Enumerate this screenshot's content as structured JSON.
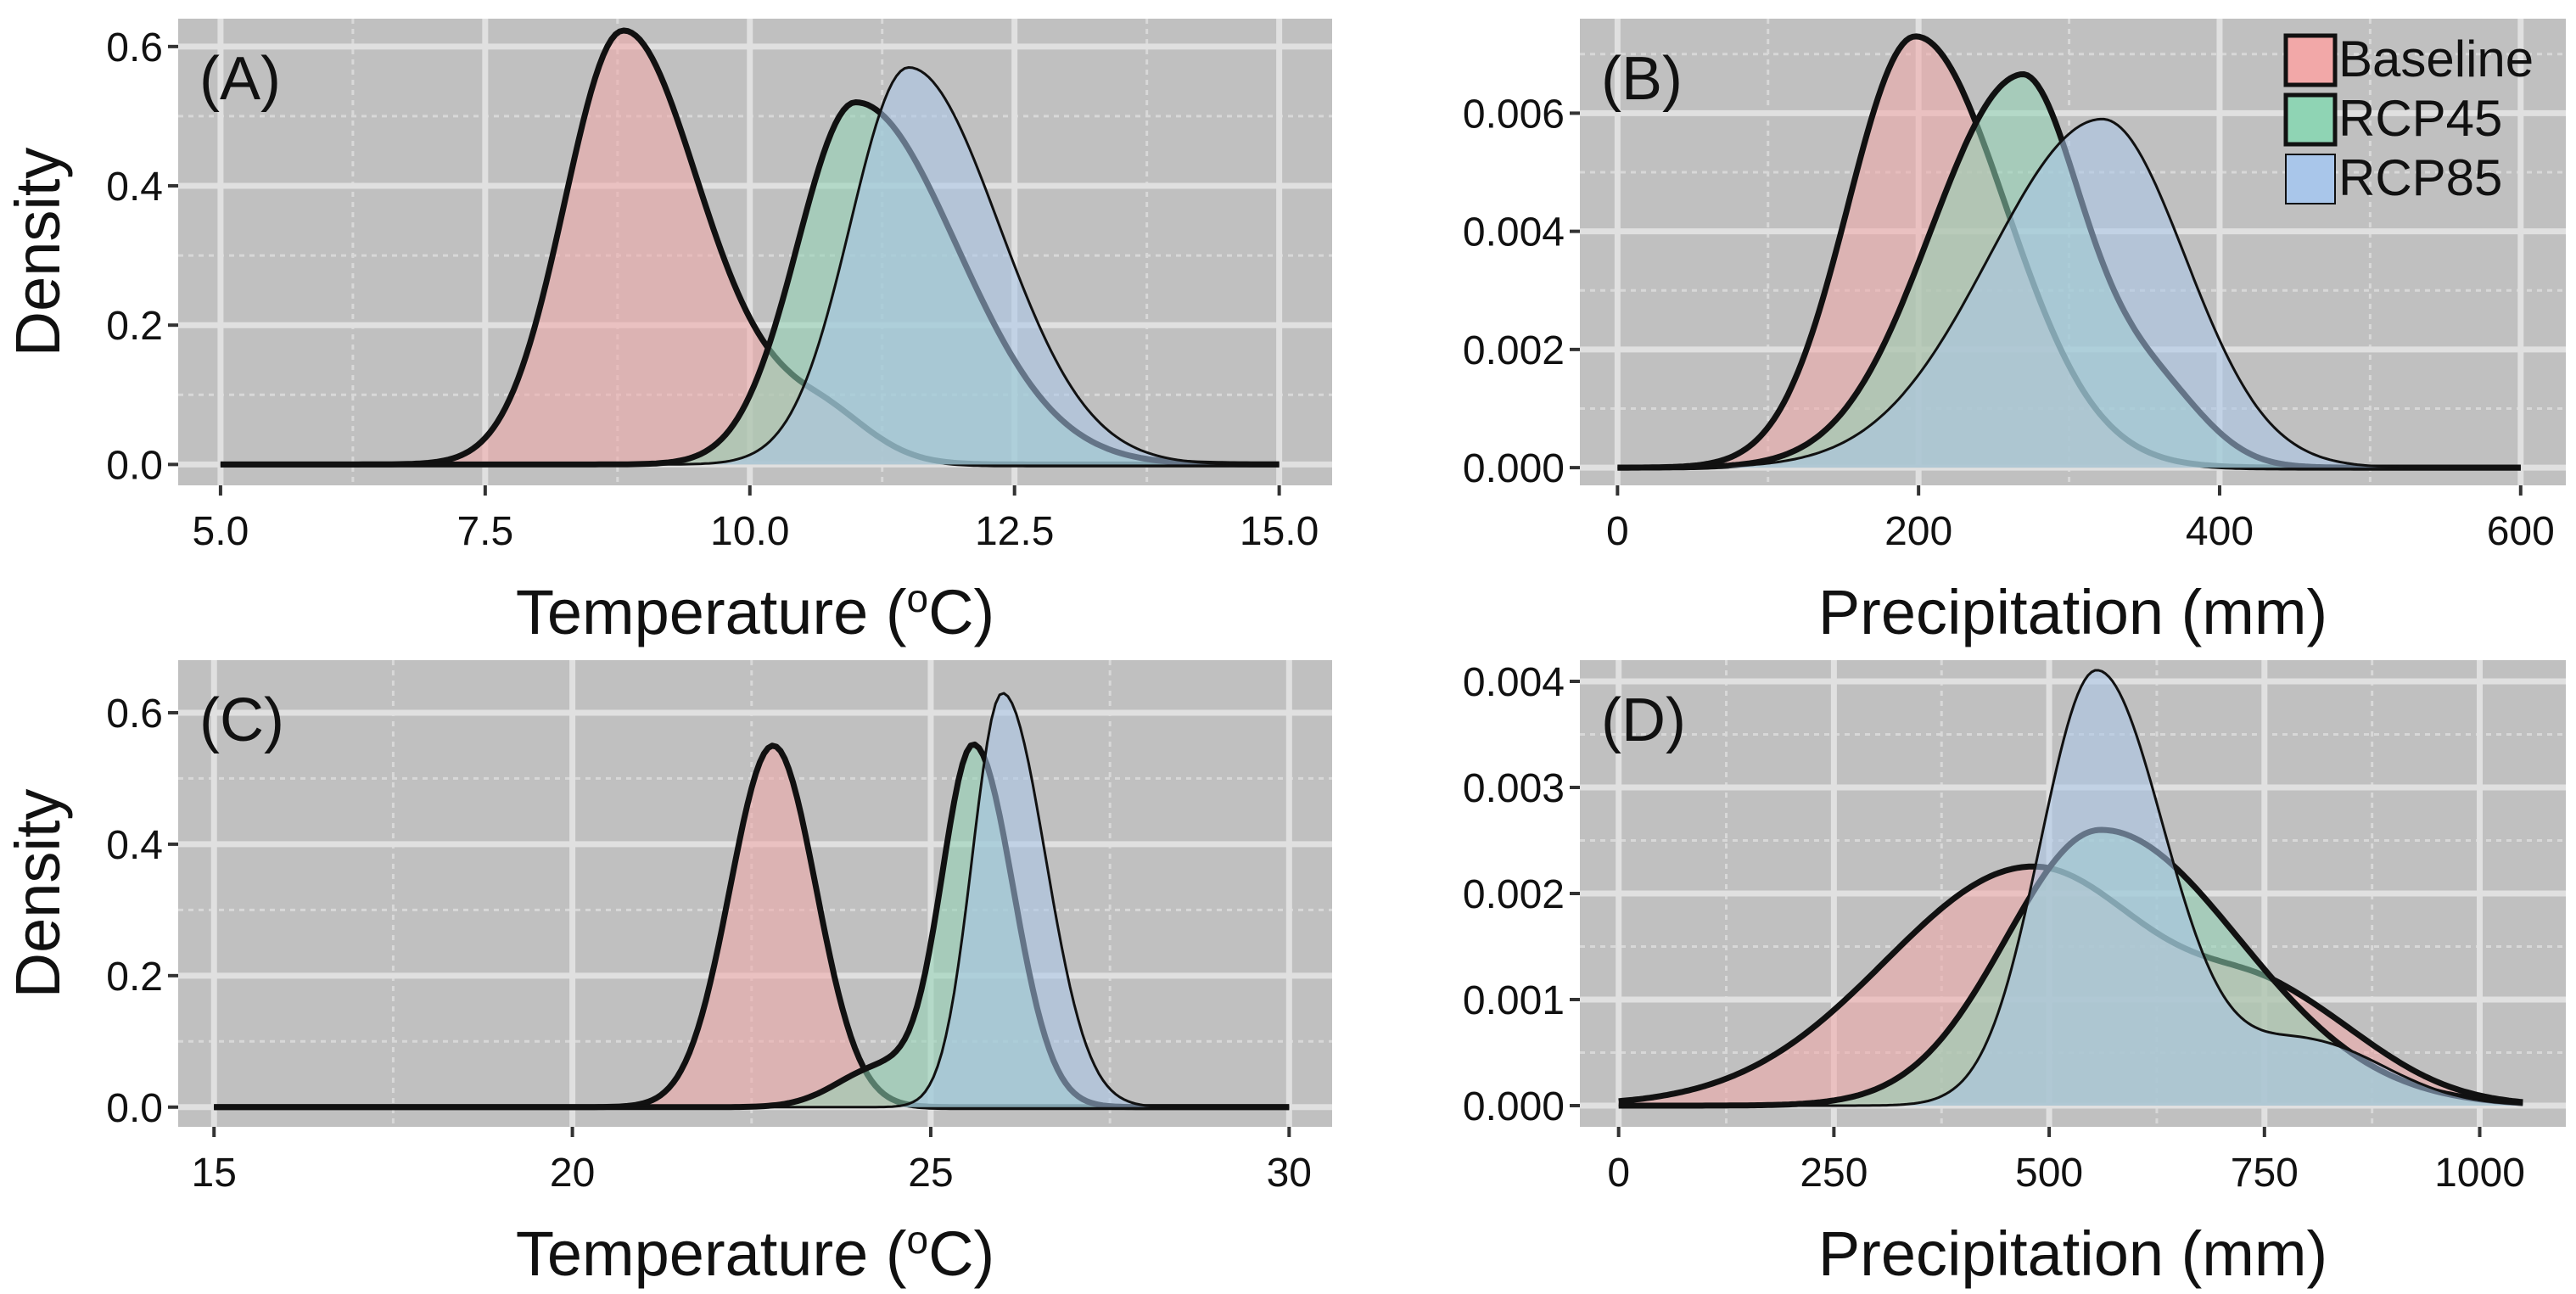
{
  "colors": {
    "panel_bg": "#c0c0c0",
    "grid_major": "#e0e0e0",
    "grid_minor": "#d8d8d8",
    "Baseline_fill": "#f2a8a8",
    "RCP45_fill": "#8fd4b4",
    "RCP85_fill": "#a9c6ea",
    "outline": "#111111"
  },
  "chart_data": [
    {
      "type": "area",
      "panel": "(A)",
      "xlabel": "Temperature (",
      "xlabel_super": "o",
      "xlabel_suffix": "C)",
      "ylabel": "Density",
      "xlim": [
        4.6,
        15.5
      ],
      "ylim": [
        -0.03,
        0.64
      ],
      "xticks": [
        5.0,
        7.5,
        10.0,
        12.5,
        15.0
      ],
      "xtick_labels": [
        "5.0",
        "7.5",
        "10.0",
        "12.5",
        "15.0"
      ],
      "yticks": [
        0.0,
        0.2,
        0.4,
        0.6
      ],
      "ytick_labels": [
        "0.0",
        "0.2",
        "0.4",
        "0.6"
      ],
      "x_range": [
        5.0,
        15.0
      ],
      "series": [
        {
          "name": "Baseline",
          "components": [
            {
              "w": 0.62,
              "mu": 8.8,
              "sl": 0.55,
              "sr": 0.72
            },
            {
              "w": 0.08,
              "mu": 10.6,
              "sl": 0.7,
              "sr": 0.5
            }
          ]
        },
        {
          "name": "RCP45",
          "components": [
            {
              "w": 0.52,
              "mu": 11.0,
              "sl": 0.55,
              "sr": 0.95
            }
          ]
        },
        {
          "name": "RCP85",
          "components": [
            {
              "w": 0.57,
              "mu": 11.5,
              "sl": 0.55,
              "sr": 0.85
            }
          ]
        }
      ]
    },
    {
      "type": "area",
      "panel": "(B)",
      "xlabel": "Precipitation (mm)",
      "ylabel": "",
      "xlim": [
        -25,
        630
      ],
      "ylim": [
        -0.0003,
        0.0076
      ],
      "xticks": [
        0,
        200,
        400,
        600
      ],
      "xtick_labels": [
        "0",
        "200",
        "400",
        "600"
      ],
      "yticks": [
        0.0,
        0.002,
        0.004,
        0.006
      ],
      "ytick_labels": [
        "0.000",
        "0.002",
        "0.004",
        "0.006"
      ],
      "x_range": [
        0,
        600
      ],
      "series": [
        {
          "name": "Baseline",
          "components": [
            {
              "w": 0.0073,
              "mu": 198,
              "sl": 45,
              "sr": 60
            }
          ]
        },
        {
          "name": "RCP45",
          "components": [
            {
              "w": 0.0066,
              "mu": 268,
              "sl": 60,
              "sr": 40
            },
            {
              "w": 0.0013,
              "mu": 355,
              "sl": 35,
              "sr": 35
            }
          ]
        },
        {
          "name": "RCP85",
          "components": [
            {
              "w": 0.0059,
              "mu": 322,
              "sl": 75,
              "sr": 55
            }
          ]
        }
      ]
    },
    {
      "type": "area",
      "panel": "(C)",
      "xlabel": "Temperature (",
      "xlabel_super": "o",
      "xlabel_suffix": "C)",
      "ylabel": "Density",
      "xlim": [
        14.5,
        30.6
      ],
      "ylim": [
        -0.03,
        0.68
      ],
      "xticks": [
        15,
        20,
        25,
        30
      ],
      "xtick_labels": [
        "15",
        "20",
        "25",
        "30"
      ],
      "yticks": [
        0.0,
        0.2,
        0.4,
        0.6
      ],
      "ytick_labels": [
        "0.0",
        "0.2",
        "0.4",
        "0.6"
      ],
      "x_range": [
        15,
        30
      ],
      "series": [
        {
          "name": "Baseline",
          "components": [
            {
              "w": 0.55,
              "mu": 22.8,
              "sl": 0.6,
              "sr": 0.6
            }
          ]
        },
        {
          "name": "RCP45",
          "components": [
            {
              "w": 0.55,
              "mu": 25.6,
              "sl": 0.45,
              "sr": 0.55
            },
            {
              "w": 0.06,
              "mu": 24.3,
              "sl": 0.6,
              "sr": 0.5
            }
          ]
        },
        {
          "name": "RCP85",
          "components": [
            {
              "w": 0.63,
              "mu": 26.0,
              "sl": 0.42,
              "sr": 0.6
            }
          ]
        }
      ]
    },
    {
      "type": "area",
      "panel": "(D)",
      "xlabel": "Precipitation (mm)",
      "ylabel": "",
      "xlim": [
        -45,
        1100
      ],
      "ylim": [
        -0.0002,
        0.0042
      ],
      "xticks": [
        0,
        250,
        500,
        750,
        1000
      ],
      "xtick_labels": [
        "0",
        "250",
        "500",
        "750",
        "1000"
      ],
      "yticks": [
        0.0,
        0.001,
        0.002,
        0.003,
        0.004
      ],
      "ytick_labels": [
        "0.000",
        "0.001",
        "0.002",
        "0.003",
        "0.004"
      ],
      "x_range": [
        0,
        1050
      ],
      "series": [
        {
          "name": "Baseline",
          "components": [
            {
              "w": 0.00225,
              "mu": 480,
              "sl": 170,
              "sr": 150
            },
            {
              "w": 0.0008,
              "mu": 770,
              "sl": 90,
              "sr": 110
            }
          ]
        },
        {
          "name": "RCP45",
          "components": [
            {
              "w": 0.0026,
              "mu": 560,
              "sl": 110,
              "sr": 160
            }
          ]
        },
        {
          "name": "RCP85",
          "components": [
            {
              "w": 0.0041,
              "mu": 555,
              "sl": 65,
              "sr": 80
            },
            {
              "w": 0.0006,
              "mu": 800,
              "sl": 80,
              "sr": 90
            }
          ]
        }
      ]
    }
  ],
  "legend": {
    "position": "top-right",
    "panel": "(B)",
    "items": [
      {
        "name": "Baseline",
        "color": "#f2a8a8"
      },
      {
        "name": "RCP45",
        "color": "#8fd4b4"
      },
      {
        "name": "RCP85",
        "color": "#a9c6ea"
      }
    ]
  }
}
